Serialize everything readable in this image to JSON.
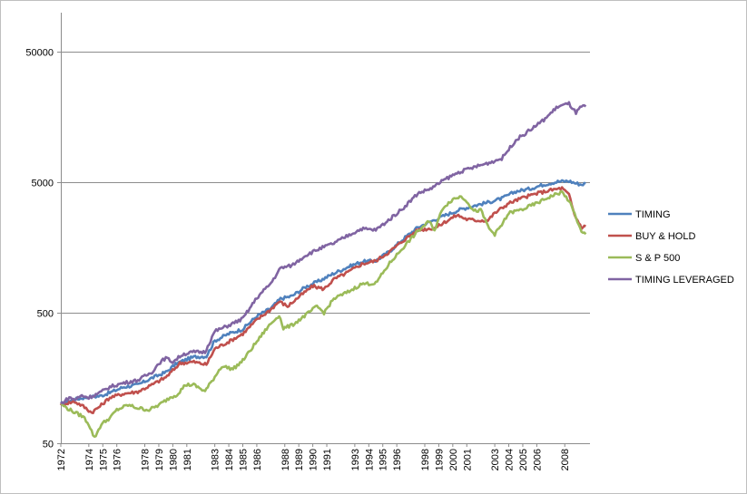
{
  "chart_data": {
    "type": "line",
    "title": "",
    "xlabel": "",
    "ylabel": "",
    "y_scale": "log",
    "ylim": [
      50,
      100000
    ],
    "xlim": [
      1972,
      2009.8
    ],
    "grid": true,
    "legend_position": "right",
    "y_ticks": [
      {
        "value": 50,
        "label": "50"
      },
      {
        "value": 500,
        "label": "500"
      },
      {
        "value": 5000,
        "label": "5000"
      },
      {
        "value": 50000,
        "label": "50000"
      }
    ],
    "x_ticks": [
      {
        "value": 1972,
        "label": "1972"
      },
      {
        "value": 1974,
        "label": "1974"
      },
      {
        "value": 1975,
        "label": "1975"
      },
      {
        "value": 1976,
        "label": "1976"
      },
      {
        "value": 1978,
        "label": "1978"
      },
      {
        "value": 1979,
        "label": "1979"
      },
      {
        "value": 1980,
        "label": "1980"
      },
      {
        "value": 1981,
        "label": "1981"
      },
      {
        "value": 1983,
        "label": "1983"
      },
      {
        "value": 1984,
        "label": "1984"
      },
      {
        "value": 1985,
        "label": "1985"
      },
      {
        "value": 1986,
        "label": "1986"
      },
      {
        "value": 1988,
        "label": "1988"
      },
      {
        "value": 1989,
        "label": "1989"
      },
      {
        "value": 1990,
        "label": "1990"
      },
      {
        "value": 1991,
        "label": "1991"
      },
      {
        "value": 1993,
        "label": "1993"
      },
      {
        "value": 1994,
        "label": "1994"
      },
      {
        "value": 1995,
        "label": "1995"
      },
      {
        "value": 1996,
        "label": "1996"
      },
      {
        "value": 1998,
        "label": "1998"
      },
      {
        "value": 1999,
        "label": "1999"
      },
      {
        "value": 2000,
        "label": "2000"
      },
      {
        "value": 2001,
        "label": "2001"
      },
      {
        "value": 2003,
        "label": "2003"
      },
      {
        "value": 2004,
        "label": "2004"
      },
      {
        "value": 2005,
        "label": "2005"
      },
      {
        "value": 2006,
        "label": "2006"
      },
      {
        "value": 2008,
        "label": "2008"
      }
    ],
    "series": [
      {
        "name": "TIMING",
        "color": "#4f81bd",
        "points": [
          [
            1972.0,
            100
          ],
          [
            1973.0,
            108
          ],
          [
            1973.7,
            112
          ],
          [
            1974.8,
            115
          ],
          [
            1975.5,
            122
          ],
          [
            1976.5,
            135
          ],
          [
            1977.5,
            140
          ],
          [
            1978.5,
            158
          ],
          [
            1979.5,
            175
          ],
          [
            1980.3,
            205
          ],
          [
            1981.0,
            220
          ],
          [
            1981.6,
            230
          ],
          [
            1982.4,
            232
          ],
          [
            1983.0,
            305
          ],
          [
            1984.0,
            345
          ],
          [
            1985.0,
            375
          ],
          [
            1986.0,
            470
          ],
          [
            1987.0,
            540
          ],
          [
            1987.7,
            640
          ],
          [
            1988.5,
            670
          ],
          [
            1989.5,
            790
          ],
          [
            1990.5,
            880
          ],
          [
            1991.5,
            1000
          ],
          [
            1992.5,
            1120
          ],
          [
            1993.5,
            1230
          ],
          [
            1994.5,
            1250
          ],
          [
            1995.5,
            1480
          ],
          [
            1996.5,
            1850
          ],
          [
            1997.5,
            2250
          ],
          [
            1998.5,
            2520
          ],
          [
            1999.5,
            2800
          ],
          [
            2000.5,
            3080
          ],
          [
            2001.5,
            3300
          ],
          [
            2002.5,
            3500
          ],
          [
            2003.5,
            3750
          ],
          [
            2004.5,
            4250
          ],
          [
            2005.5,
            4450
          ],
          [
            2006.5,
            4800
          ],
          [
            2007.5,
            5050
          ],
          [
            2008.3,
            5100
          ],
          [
            2008.8,
            4900
          ],
          [
            2009.2,
            4800
          ],
          [
            2009.5,
            4900
          ]
        ]
      },
      {
        "name": "BUY & HOLD",
        "color": "#c0504d",
        "points": [
          [
            1972.0,
            100
          ],
          [
            1973.0,
            104
          ],
          [
            1973.6,
            96
          ],
          [
            1974.2,
            86
          ],
          [
            1974.8,
            96
          ],
          [
            1975.5,
            112
          ],
          [
            1976.5,
            120
          ],
          [
            1977.5,
            124
          ],
          [
            1978.5,
            140
          ],
          [
            1979.5,
            160
          ],
          [
            1980.0,
            180
          ],
          [
            1980.5,
            205
          ],
          [
            1981.5,
            210
          ],
          [
            1982.4,
            200
          ],
          [
            1983.0,
            265
          ],
          [
            1984.0,
            300
          ],
          [
            1985.0,
            345
          ],
          [
            1986.0,
            440
          ],
          [
            1987.0,
            530
          ],
          [
            1987.6,
            610
          ],
          [
            1988.2,
            560
          ],
          [
            1989.0,
            660
          ],
          [
            1990.0,
            800
          ],
          [
            1990.8,
            760
          ],
          [
            1991.5,
            900
          ],
          [
            1992.5,
            1020
          ],
          [
            1993.5,
            1180
          ],
          [
            1994.5,
            1250
          ],
          [
            1995.5,
            1470
          ],
          [
            1996.5,
            1800
          ],
          [
            1997.5,
            2150
          ],
          [
            1998.3,
            2200
          ],
          [
            1998.8,
            2250
          ],
          [
            1999.5,
            2500
          ],
          [
            2000.3,
            2800
          ],
          [
            2001.0,
            2600
          ],
          [
            2001.7,
            2550
          ],
          [
            2002.5,
            2550
          ],
          [
            2003.0,
            2900
          ],
          [
            2004.0,
            3450
          ],
          [
            2005.0,
            3800
          ],
          [
            2006.0,
            4100
          ],
          [
            2007.0,
            4350
          ],
          [
            2007.8,
            4500
          ],
          [
            2008.3,
            4000
          ],
          [
            2008.7,
            2800
          ],
          [
            2009.2,
            2250
          ],
          [
            2009.5,
            2300
          ]
        ]
      },
      {
        "name": "S & P 500",
        "color": "#9bbb59",
        "points": [
          [
            1972.0,
            100
          ],
          [
            1972.5,
            92
          ],
          [
            1973.0,
            86
          ],
          [
            1973.6,
            80
          ],
          [
            1974.0,
            70
          ],
          [
            1974.4,
            55
          ],
          [
            1974.9,
            70
          ],
          [
            1975.5,
            78
          ],
          [
            1976.0,
            90
          ],
          [
            1976.8,
            98
          ],
          [
            1977.5,
            93
          ],
          [
            1978.3,
            90
          ],
          [
            1979.0,
            98
          ],
          [
            1979.8,
            112
          ],
          [
            1980.3,
            118
          ],
          [
            1980.9,
            140
          ],
          [
            1981.5,
            140
          ],
          [
            1982.3,
            125
          ],
          [
            1982.8,
            150
          ],
          [
            1983.5,
            195
          ],
          [
            1984.3,
            185
          ],
          [
            1985.0,
            215
          ],
          [
            1986.0,
            300
          ],
          [
            1986.8,
            390
          ],
          [
            1987.6,
            480
          ],
          [
            1987.9,
            380
          ],
          [
            1988.5,
            400
          ],
          [
            1989.5,
            480
          ],
          [
            1990.3,
            560
          ],
          [
            1990.8,
            500
          ],
          [
            1991.5,
            640
          ],
          [
            1992.5,
            720
          ],
          [
            1993.5,
            830
          ],
          [
            1994.5,
            840
          ],
          [
            1995.5,
            1200
          ],
          [
            1996.5,
            1600
          ],
          [
            1997.5,
            2100
          ],
          [
            1998.3,
            2500
          ],
          [
            1998.7,
            2150
          ],
          [
            1999.3,
            3200
          ],
          [
            2000.0,
            3700
          ],
          [
            2000.6,
            3900
          ],
          [
            2001.0,
            3600
          ],
          [
            2001.5,
            3000
          ],
          [
            2002.0,
            3050
          ],
          [
            2002.6,
            2200
          ],
          [
            2003.0,
            2000
          ],
          [
            2003.5,
            2350
          ],
          [
            2004.0,
            2900
          ],
          [
            2005.0,
            3100
          ],
          [
            2006.0,
            3450
          ],
          [
            2007.0,
            3900
          ],
          [
            2007.8,
            4200
          ],
          [
            2008.3,
            3600
          ],
          [
            2008.8,
            2700
          ],
          [
            2009.2,
            2050
          ],
          [
            2009.5,
            2000
          ]
        ]
      },
      {
        "name": "TIMING  LEVERAGED",
        "color": "#8064a2",
        "points": [
          [
            1972.0,
            100
          ],
          [
            1972.6,
            112
          ],
          [
            1973.0,
            108
          ],
          [
            1973.5,
            116
          ],
          [
            1974.0,
            112
          ],
          [
            1974.8,
            122
          ],
          [
            1975.5,
            135
          ],
          [
            1976.5,
            145
          ],
          [
            1977.5,
            152
          ],
          [
            1978.5,
            175
          ],
          [
            1979.0,
            205
          ],
          [
            1979.5,
            225
          ],
          [
            1980.0,
            210
          ],
          [
            1980.7,
            240
          ],
          [
            1981.5,
            250
          ],
          [
            1982.3,
            250
          ],
          [
            1983.0,
            360
          ],
          [
            1984.0,
            400
          ],
          [
            1985.0,
            450
          ],
          [
            1986.0,
            650
          ],
          [
            1987.0,
            840
          ],
          [
            1987.7,
            1100
          ],
          [
            1988.5,
            1150
          ],
          [
            1989.5,
            1380
          ],
          [
            1990.5,
            1550
          ],
          [
            1991.5,
            1700
          ],
          [
            1992.5,
            1950
          ],
          [
            1993.5,
            2200
          ],
          [
            1994.5,
            2150
          ],
          [
            1995.5,
            2600
          ],
          [
            1996.5,
            3200
          ],
          [
            1997.5,
            4100
          ],
          [
            1998.5,
            4500
          ],
          [
            1999.5,
            5300
          ],
          [
            2000.5,
            6000
          ],
          [
            2001.5,
            6500
          ],
          [
            2002.5,
            7000
          ],
          [
            2003.5,
            7600
          ],
          [
            2004.5,
            10500
          ],
          [
            2005.5,
            12500
          ],
          [
            2006.5,
            15000
          ],
          [
            2007.5,
            19000
          ],
          [
            2008.3,
            20000
          ],
          [
            2008.8,
            17000
          ],
          [
            2009.2,
            19000
          ],
          [
            2009.5,
            19000
          ]
        ]
      }
    ]
  }
}
